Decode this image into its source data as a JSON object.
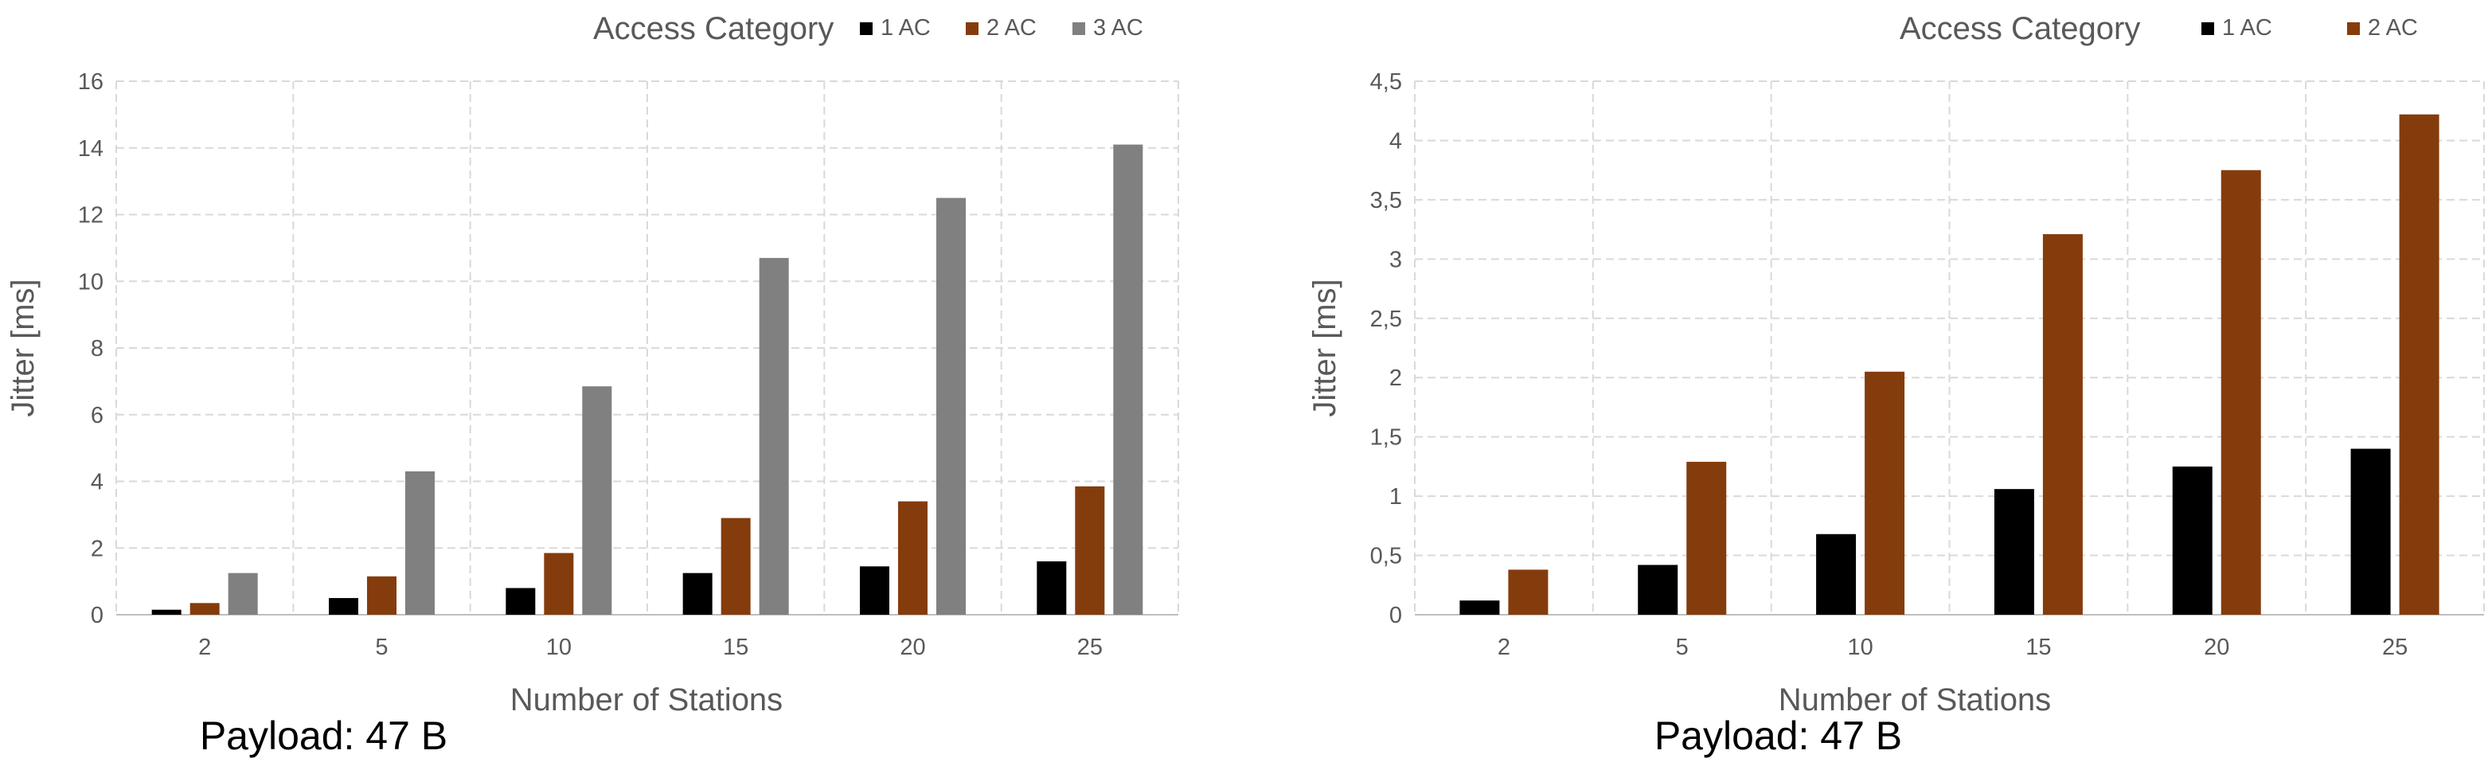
{
  "charts": [
    {
      "caption": "Payload: 47 B",
      "chart_data": {
        "type": "bar",
        "legend_title": "Access Category",
        "legend_position": "top",
        "xlabel": "Number of Stations",
        "ylabel": "Jitter [ms]",
        "categories": [
          "2",
          "5",
          "10",
          "15",
          "20",
          "25"
        ],
        "ylim": [
          0,
          16
        ],
        "yticks": [
          "0",
          "2",
          "4",
          "6",
          "8",
          "10",
          "12",
          "14",
          "16"
        ],
        "grid": true,
        "series": [
          {
            "name": "1 AC",
            "color": "#000000",
            "values": [
              0.15,
              0.5,
              0.8,
              1.25,
              1.45,
              1.6
            ]
          },
          {
            "name": "2 AC",
            "color": "#843C0C",
            "values": [
              0.35,
              1.15,
              1.85,
              2.9,
              3.4,
              3.85
            ]
          },
          {
            "name": "3 AC",
            "color": "#808080",
            "values": [
              1.25,
              4.3,
              6.85,
              10.7,
              12.5,
              14.1
            ]
          }
        ]
      }
    },
    {
      "caption": "Payload: 47 B",
      "chart_data": {
        "type": "bar",
        "legend_title": "Access Category",
        "legend_position": "top",
        "xlabel": "Number of Stations",
        "ylabel": "Jitter [ms]",
        "categories": [
          "2",
          "5",
          "10",
          "15",
          "20",
          "25"
        ],
        "ylim": [
          0,
          4.5
        ],
        "yticks": [
          "0",
          "0,5",
          "1",
          "1,5",
          "2",
          "2,5",
          "3",
          "3,5",
          "4",
          "4,5"
        ],
        "grid": true,
        "series": [
          {
            "name": "1 AC",
            "color": "#000000",
            "values": [
              0.12,
              0.42,
              0.68,
              1.06,
              1.25,
              1.4
            ]
          },
          {
            "name": "2 AC",
            "color": "#843C0C",
            "values": [
              0.38,
              1.29,
              2.05,
              3.21,
              3.75,
              4.22
            ]
          }
        ]
      }
    }
  ]
}
